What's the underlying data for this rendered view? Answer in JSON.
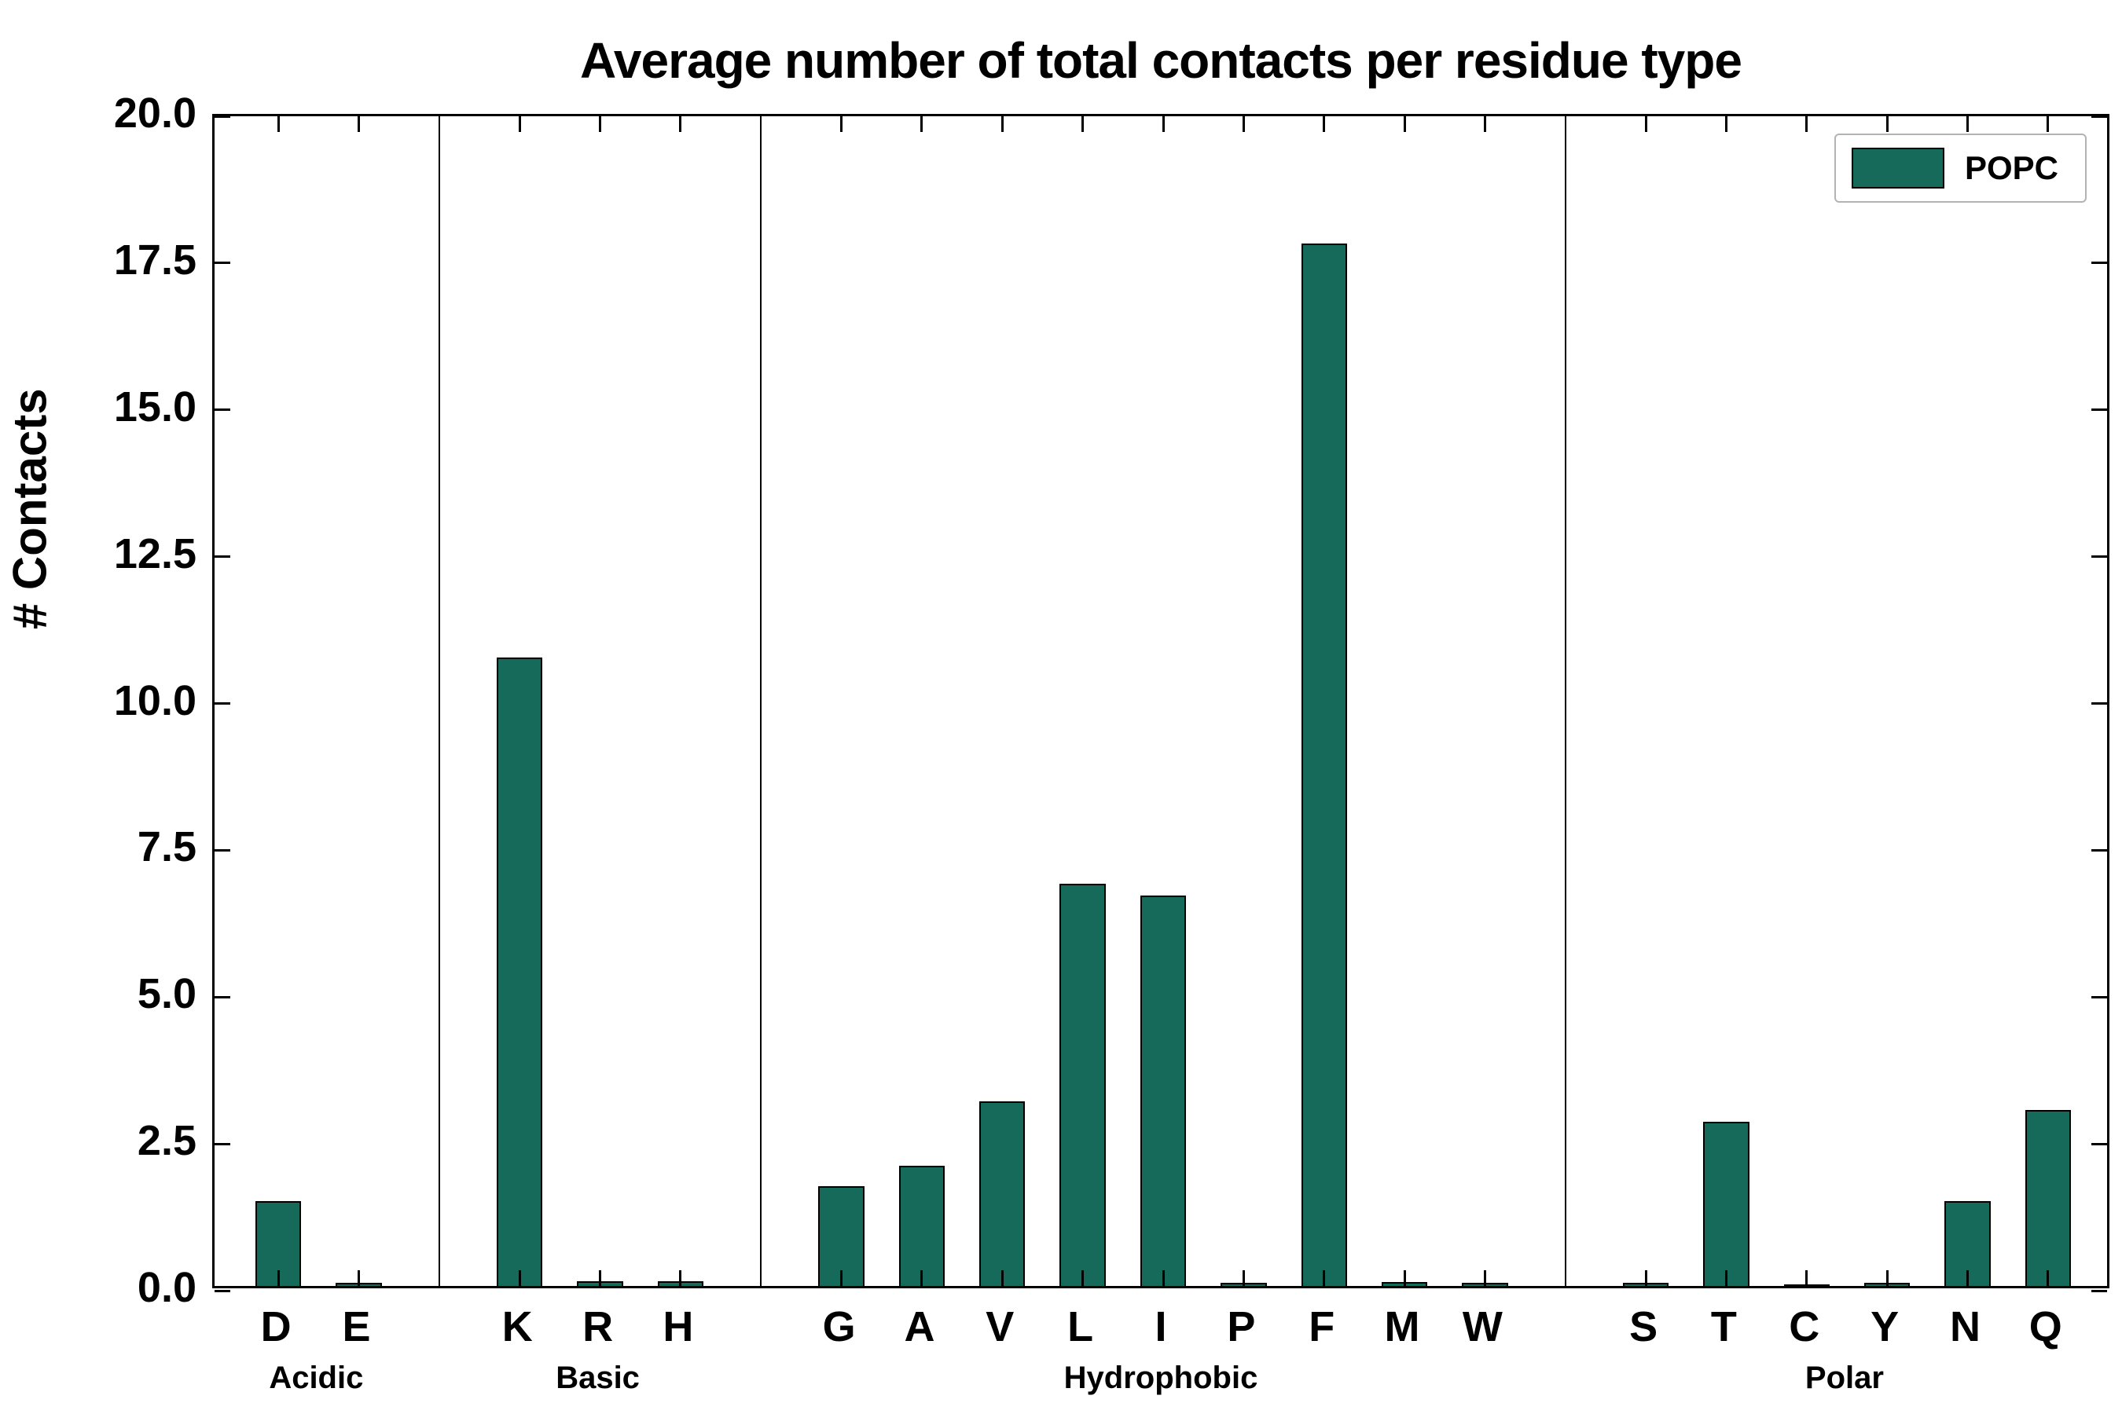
{
  "title": "Average number of total contacts per residue type",
  "ylabel": "# Contacts",
  "legend": {
    "label": "POPC"
  },
  "colors": {
    "bar": "#156a5a",
    "bar_edge": "#000000",
    "axis": "#000000",
    "legend_border": "#b3b3b3"
  },
  "chart_data": {
    "type": "bar",
    "title": "Average number of total contacts per residue type",
    "xlabel": "",
    "ylabel": "# Contacts",
    "ylim": [
      0,
      20
    ],
    "yticks": [
      0.0,
      2.5,
      5.0,
      7.5,
      10.0,
      12.5,
      15.0,
      17.5,
      20.0
    ],
    "ytick_labels": [
      "0.0",
      "2.5",
      "5.0",
      "7.5",
      "10.0",
      "12.5",
      "15.0",
      "17.5",
      "20.0"
    ],
    "grid": false,
    "legend_position": "upper right",
    "series": [
      {
        "name": "POPC",
        "color": "#156a5a"
      }
    ],
    "groups": [
      {
        "label": "Acidic",
        "categories": [
          "D",
          "E"
        ],
        "values": [
          1.45,
          0.05
        ]
      },
      {
        "label": "Basic",
        "categories": [
          "K",
          "R",
          "H"
        ],
        "values": [
          10.7,
          0.08,
          0.08
        ]
      },
      {
        "label": "Hydrophobic",
        "categories": [
          "G",
          "A",
          "V",
          "L",
          "I",
          "P",
          "F",
          "M",
          "W"
        ],
        "values": [
          1.7,
          2.05,
          3.15,
          6.85,
          6.65,
          0.05,
          17.75,
          0.07,
          0.05
        ]
      },
      {
        "label": "Polar",
        "categories": [
          "S",
          "T",
          "C",
          "Y",
          "N",
          "Q"
        ],
        "values": [
          0.06,
          2.8,
          0.02,
          0.05,
          1.45,
          3.0
        ]
      }
    ]
  }
}
